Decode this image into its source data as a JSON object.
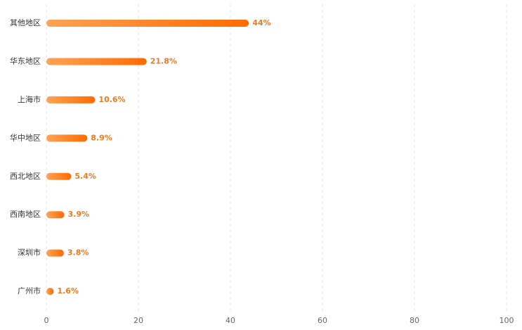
{
  "chart_data": {
    "type": "hbar",
    "categories": [
      "其他地区",
      "华东地区",
      "上海市",
      "华中地区",
      "西北地区",
      "西南地区",
      "深圳市",
      "广州市"
    ],
    "values": [
      44,
      21.8,
      10.6,
      8.9,
      5.4,
      3.9,
      3.8,
      1.6
    ],
    "value_labels": [
      "44%",
      "21.8%",
      "10.6%",
      "8.9%",
      "5.4%",
      "3.9%",
      "3.8%",
      "1.6%"
    ],
    "colors": [
      "#ffa354",
      "#ff6a00"
    ],
    "xlim": [
      0,
      100
    ],
    "xticks": [
      0,
      20,
      40,
      60,
      80,
      100
    ],
    "grid": true
  }
}
